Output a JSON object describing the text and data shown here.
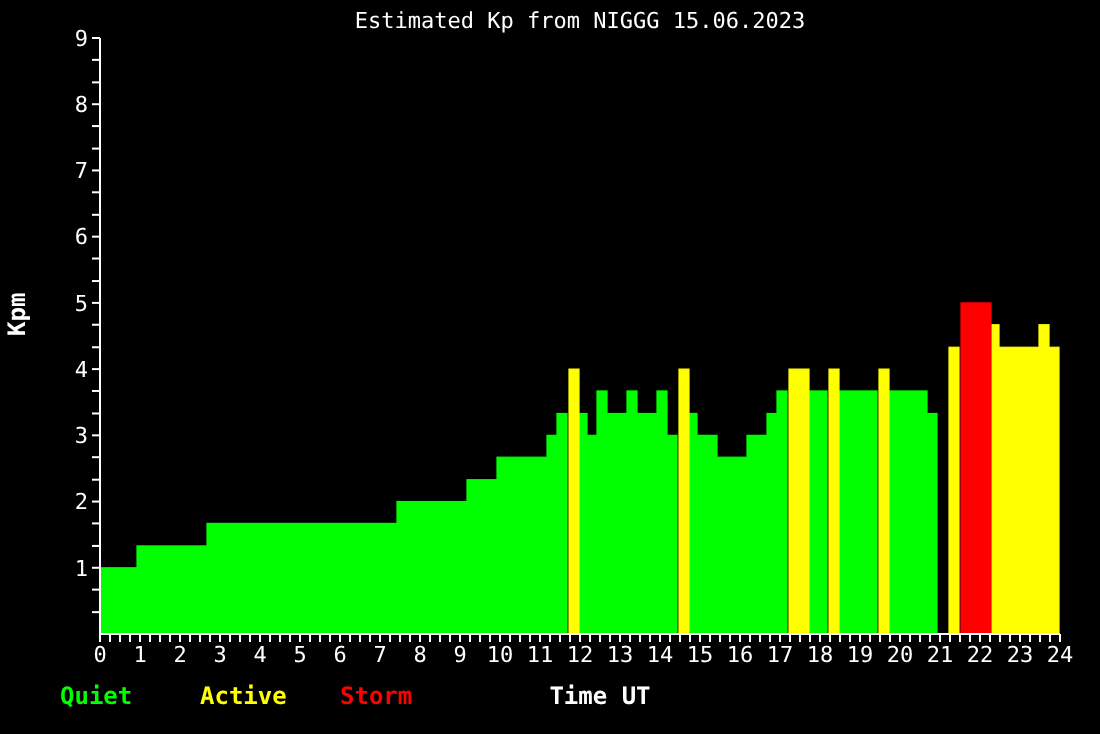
{
  "chart_data": {
    "type": "histogram",
    "title": "Estimated Kp from NIGGG 15.06.2023",
    "xlabel": "Time UT",
    "ylabel": "Kpm",
    "bins": [
      0,
      1,
      2.75,
      7.5,
      9.25,
      10,
      11.25,
      11.5,
      11.75,
      12,
      12.25,
      12.5,
      12.75,
      13.25,
      13.5,
      14,
      14.25,
      14.5,
      14.75,
      15,
      15.5,
      16.25,
      16.75,
      17,
      17.25,
      17.75,
      18.25,
      18.5,
      19.5,
      19.75,
      20.75,
      21,
      21.25,
      21.5,
      22.25,
      22.5,
      23.5,
      23.75,
      24
    ],
    "series": [
      {
        "name": "Quiet",
        "color": "#00ff00",
        "values": [
          1,
          1.33,
          1.67,
          2,
          2.33,
          2.67,
          3,
          3.33,
          null,
          3.33,
          3,
          3.67,
          3.33,
          3.67,
          3.33,
          3.67,
          3,
          null,
          3.33,
          3,
          2.67,
          3,
          3.33,
          3.67,
          null,
          3.67,
          null,
          3.67,
          null,
          3.67,
          3.33,
          null,
          null,
          null,
          null,
          null,
          null,
          null
        ]
      },
      {
        "name": "Active",
        "color": "#ffff00",
        "values": [
          null,
          null,
          null,
          null,
          null,
          null,
          null,
          null,
          4,
          null,
          null,
          null,
          null,
          null,
          null,
          null,
          null,
          4,
          null,
          null,
          null,
          null,
          null,
          null,
          4,
          null,
          4,
          null,
          4,
          null,
          null,
          null,
          4.33,
          null,
          4.67,
          4.33,
          4.67,
          4.33
        ]
      },
      {
        "name": "Storm",
        "color": "#ff0000",
        "values": [
          null,
          null,
          null,
          null,
          null,
          null,
          null,
          null,
          null,
          null,
          null,
          null,
          null,
          null,
          null,
          null,
          null,
          null,
          null,
          null,
          null,
          null,
          null,
          null,
          null,
          null,
          null,
          null,
          null,
          null,
          null,
          null,
          null,
          5,
          null,
          null,
          null,
          null
        ]
      }
    ],
    "xlim": [
      0,
      24
    ],
    "xticks": [
      0,
      {
        "value": 0.25,
        "label": null
      },
      {
        "value": 0.5,
        "label": null
      },
      {
        "value": 0.75,
        "label": null
      },
      1,
      {
        "value": 1.25,
        "label": null
      },
      {
        "value": 1.5,
        "label": null
      },
      {
        "value": 1.75,
        "label": null
      },
      2,
      {
        "value": 2.25,
        "label": null
      },
      {
        "value": 2.5,
        "label": null
      },
      {
        "value": 2.75,
        "label": null
      },
      3,
      {
        "value": 3.25,
        "label": null
      },
      {
        "value": 3.5,
        "label": null
      },
      {
        "value": 3.75,
        "label": null
      },
      4,
      {
        "value": 4.25,
        "label": null
      },
      {
        "value": 4.5,
        "label": null
      },
      {
        "value": 4.75,
        "label": null
      },
      5,
      {
        "value": 5.25,
        "label": null
      },
      {
        "value": 5.5,
        "label": null
      },
      {
        "value": 5.75,
        "label": null
      },
      6,
      {
        "value": 6.25,
        "label": null
      },
      {
        "value": 6.5,
        "label": null
      },
      {
        "value": 6.75,
        "label": null
      },
      7,
      {
        "value": 7.25,
        "label": null
      },
      {
        "value": 7.5,
        "label": null
      },
      {
        "value": 7.75,
        "label": null
      },
      8,
      {
        "value": 8.25,
        "label": null
      },
      {
        "value": 8.5,
        "label": null
      },
      {
        "value": 8.75,
        "label": null
      },
      9,
      {
        "value": 9.25,
        "label": null
      },
      {
        "value": 9.5,
        "label": null
      },
      {
        "value": 9.75,
        "label": null
      },
      10,
      {
        "value": 10.25,
        "label": null
      },
      {
        "value": 10.5,
        "label": null
      },
      {
        "value": 10.75,
        "label": null
      },
      11,
      {
        "value": 11.25,
        "label": null
      },
      {
        "value": 11.5,
        "label": null
      },
      {
        "value": 11.75,
        "label": null
      },
      12,
      {
        "value": 12.25,
        "label": null
      },
      {
        "value": 12.5,
        "label": null
      },
      {
        "value": 12.75,
        "label": null
      },
      13,
      {
        "value": 13.25,
        "label": null
      },
      {
        "value": 13.5,
        "label": null
      },
      {
        "value": 13.75,
        "label": null
      },
      14,
      {
        "value": 14.25,
        "label": null
      },
      {
        "value": 14.5,
        "label": null
      },
      {
        "value": 14.75,
        "label": null
      },
      15,
      {
        "value": 15.25,
        "label": null
      },
      {
        "value": 15.5,
        "label": null
      },
      {
        "value": 15.75,
        "label": null
      },
      16,
      {
        "value": 16.25,
        "label": null
      },
      {
        "value": 16.5,
        "label": null
      },
      {
        "value": 16.75,
        "label": null
      },
      17,
      {
        "value": 17.25,
        "label": null
      },
      {
        "value": 17.5,
        "label": null
      },
      {
        "value": 17.75,
        "label": null
      },
      18,
      {
        "value": 18.25,
        "label": null
      },
      {
        "value": 18.5,
        "label": null
      },
      {
        "value": 18.75,
        "label": null
      },
      19,
      {
        "value": 19.25,
        "label": null
      },
      {
        "value": 19.5,
        "label": null
      },
      {
        "value": 19.75,
        "label": null
      },
      20,
      {
        "value": 20.25,
        "label": null
      },
      {
        "value": 20.5,
        "label": null
      },
      {
        "value": 20.75,
        "label": null
      },
      21,
      {
        "value": 21.25,
        "label": null
      },
      {
        "value": 21.5,
        "label": null
      },
      {
        "value": 21.75,
        "label": null
      },
      22,
      {
        "value": 22.25,
        "label": null
      },
      {
        "value": 22.5,
        "label": null
      },
      {
        "value": 22.75,
        "label": null
      },
      23,
      {
        "value": 23.25,
        "label": null
      },
      {
        "value": 23.5,
        "label": null
      },
      {
        "value": 23.75,
        "label": null
      },
      24
    ],
    "ylim": [
      0,
      9
    ],
    "yticks": [
      {
        "value": 0.33,
        "label": null
      },
      {
        "value": 0.67,
        "label": null
      },
      1,
      {
        "value": 1.33,
        "label": null
      },
      {
        "value": 1.67,
        "label": null
      },
      2,
      {
        "value": 2.33,
        "label": null
      },
      {
        "value": 2.67,
        "label": null
      },
      3,
      {
        "value": 3.33,
        "label": null
      },
      {
        "value": 3.67,
        "label": null
      },
      4,
      {
        "value": 4.33,
        "label": null
      },
      {
        "value": 4.67,
        "label": null
      },
      5,
      {
        "value": 5.33,
        "label": null
      },
      {
        "value": 5.67,
        "label": null
      },
      6,
      {
        "value": 6.33,
        "label": null
      },
      {
        "value": 6.67,
        "label": null
      },
      7,
      {
        "value": 7.33,
        "label": null
      },
      {
        "value": 7.67,
        "label": null
      },
      8,
      {
        "value": 8.33,
        "label": null
      },
      {
        "value": 8.67,
        "label": null
      },
      9
    ],
    "legend": "bottom left"
  }
}
